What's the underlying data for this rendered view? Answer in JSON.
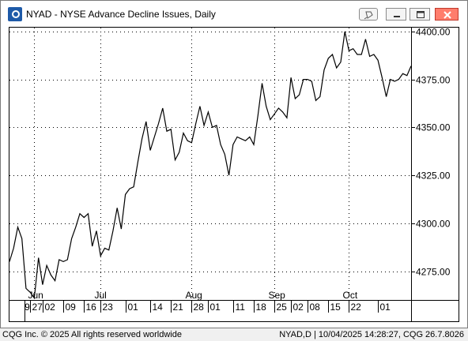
{
  "window": {
    "title": "NYAD - NYSE Advance Decline Issues, Daily",
    "pin_icon": "pin-icon",
    "min_icon": "minimize-icon",
    "max_icon": "maximize-icon",
    "close_icon": "close-icon"
  },
  "status": {
    "left": "CQG Inc. © 2025 All rights reserved worldwide",
    "right": "NYAD,D | 10/04/2025 14:28:27, CQG 26.7.8026"
  },
  "colors": {
    "line": "#000000",
    "background": "#ffffff",
    "close_button": "#ff7d6c",
    "accent": "#1e5aa8"
  },
  "chart_data": {
    "type": "line",
    "title": "NYAD - NYSE Advance Decline Issues, Daily",
    "ylim": [
      4260,
      4402
    ],
    "yticks": [
      4275,
      4300,
      4325,
      4350,
      4375,
      4400
    ],
    "ytick_labels": [
      "4275.00",
      "4300.00",
      "4325.00",
      "4350.00",
      "4375.00",
      "4400.00"
    ],
    "grid": true,
    "month_labels": [
      {
        "label": "Jun",
        "index": 6
      },
      {
        "label": "Jul",
        "index": 22
      },
      {
        "label": "Aug",
        "index": 44
      },
      {
        "label": "Sep",
        "index": 64
      },
      {
        "label": "Oct",
        "index": 82
      }
    ],
    "day_labels": [
      {
        "label": "19",
        "index": 2
      },
      {
        "label": "27",
        "index": 5
      },
      {
        "label": "02",
        "index": 8
      },
      {
        "label": "09",
        "index": 13
      },
      {
        "label": "16",
        "index": 18
      },
      {
        "label": "23",
        "index": 22
      },
      {
        "label": "01",
        "index": 28
      },
      {
        "label": "14",
        "index": 34
      },
      {
        "label": "21",
        "index": 39
      },
      {
        "label": "28",
        "index": 44
      },
      {
        "label": "01",
        "index": 48
      },
      {
        "label": "11",
        "index": 54
      },
      {
        "label": "18",
        "index": 59
      },
      {
        "label": "25",
        "index": 64
      },
      {
        "label": "02",
        "index": 68
      },
      {
        "label": "08",
        "index": 72
      },
      {
        "label": "15",
        "index": 77
      },
      {
        "label": "22",
        "index": 82
      },
      {
        "label": "01",
        "index": 89
      }
    ],
    "series": [
      {
        "values": [
          4280,
          4287,
          4298,
          4292,
          4266,
          4264,
          4261,
          4282,
          4268,
          4278,
          4273,
          4270,
          4281,
          4280,
          4281,
          4292,
          4298,
          4305,
          4303,
          4305,
          4288,
          4296,
          4283,
          4287,
          4286,
          4296,
          4308,
          4297,
          4315,
          4318,
          4319,
          4332,
          4344,
          4353,
          4338,
          4345,
          4352,
          4360,
          4348,
          4349,
          4333,
          4337,
          4347,
          4343,
          4342,
          4352,
          4361,
          4351,
          4358,
          4350,
          4351,
          4341,
          4336,
          4325,
          4341,
          4345,
          4344,
          4343,
          4345,
          4341,
          4356,
          4373,
          4361,
          4354,
          4357,
          4360,
          4358,
          4355,
          4376,
          4365,
          4367,
          4375,
          4375,
          4374,
          4364,
          4366,
          4380,
          4386,
          4388,
          4381,
          4384,
          4400,
          4390,
          4391,
          4388,
          4388,
          4396,
          4387,
          4388,
          4385,
          4376,
          4366,
          4375,
          4374,
          4375,
          4378,
          4377,
          4382
        ]
      }
    ]
  }
}
